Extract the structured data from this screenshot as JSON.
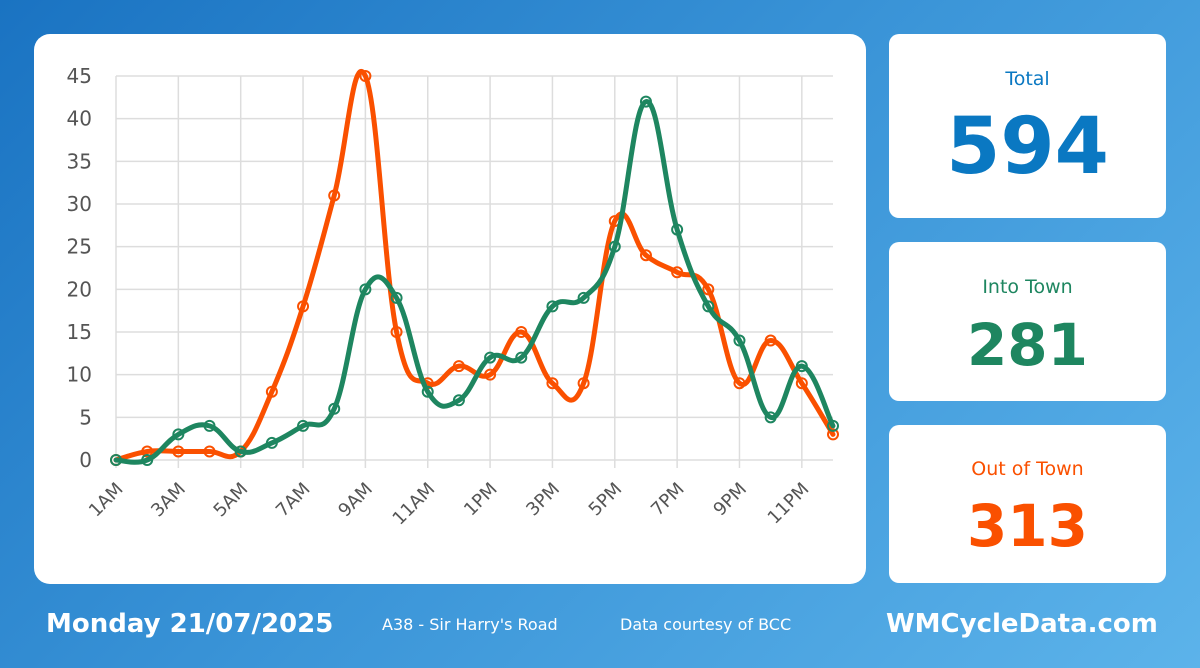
{
  "colors": {
    "total": "#0a78c2",
    "into_town": "#1e8660",
    "out_of_town": "#fa5000"
  },
  "stats": {
    "total": {
      "label": "Total",
      "value": "594"
    },
    "into_town": {
      "label": "Into Town",
      "value": "281"
    },
    "out_of_town": {
      "label": "Out of Town",
      "value": "313"
    }
  },
  "footer": {
    "date": "Monday 21/07/2025",
    "road": "A38 - Sir Harry's Road",
    "credit": "Data courtesy of BCC",
    "site": "WMCycleData.com"
  },
  "chart_data": {
    "type": "line",
    "categories": [
      "1AM",
      "2AM",
      "3AM",
      "4AM",
      "5AM",
      "6AM",
      "7AM",
      "8AM",
      "9AM",
      "10AM",
      "11AM",
      "12PM",
      "1PM",
      "2PM",
      "3PM",
      "4PM",
      "5PM",
      "6PM",
      "7PM",
      "8PM",
      "9PM",
      "10PM",
      "11PM",
      "12AM"
    ],
    "x_tick_labels": [
      "1AM",
      "3AM",
      "5AM",
      "7AM",
      "9AM",
      "11AM",
      "1PM",
      "3PM",
      "5PM",
      "7PM",
      "9PM",
      "11PM"
    ],
    "y_ticks": [
      0,
      5,
      10,
      15,
      20,
      25,
      30,
      35,
      40,
      45
    ],
    "ylim": [
      0,
      45
    ],
    "grid": true,
    "series": [
      {
        "key": "out_of_town",
        "color": "#fa5000",
        "values": [
          0,
          1,
          1,
          1,
          1,
          8,
          18,
          31,
          45,
          15,
          9,
          11,
          10,
          15,
          9,
          9,
          28,
          24,
          22,
          20,
          9,
          14,
          9,
          3
        ]
      },
      {
        "key": "into_town",
        "color": "#1e8660",
        "values": [
          0,
          0,
          3,
          4,
          1,
          2,
          4,
          6,
          20,
          19,
          8,
          7,
          12,
          12,
          18,
          19,
          25,
          42,
          27,
          18,
          14,
          5,
          11,
          4
        ]
      }
    ]
  }
}
